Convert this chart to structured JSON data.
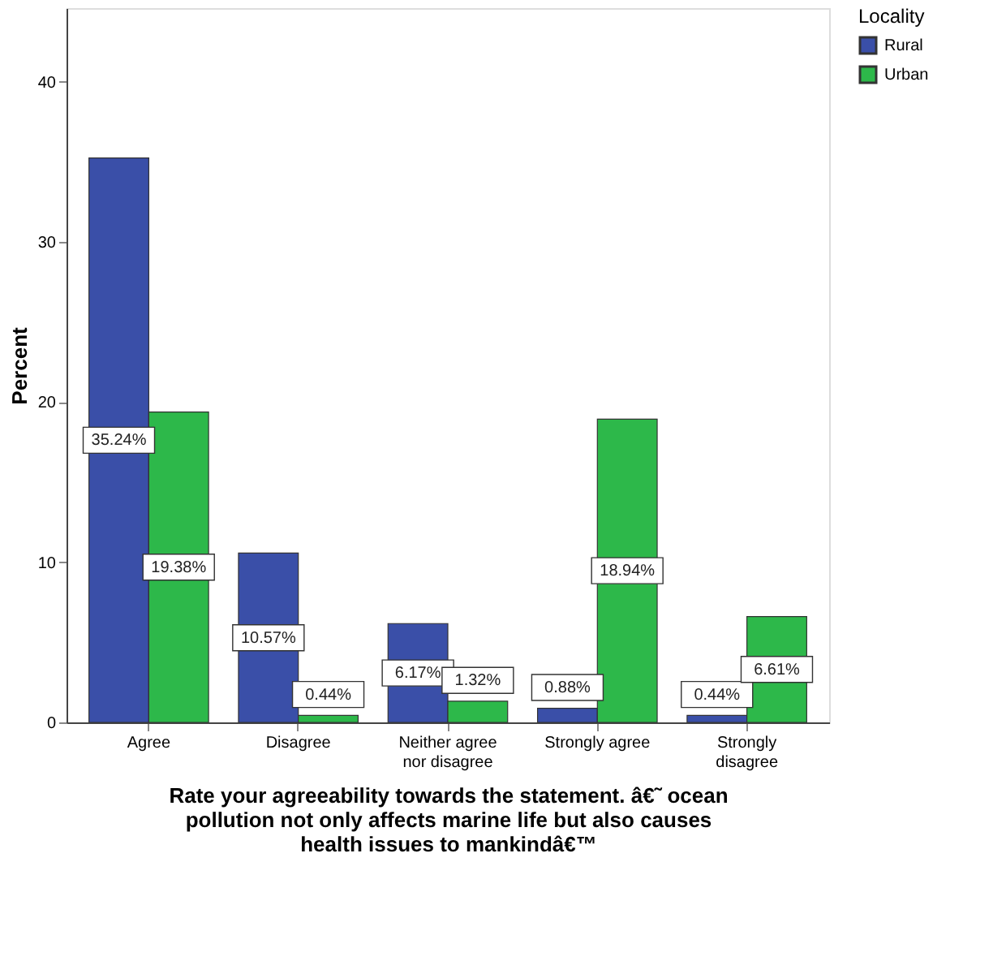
{
  "chart_data": {
    "type": "bar",
    "categories": [
      "Agree",
      "Disagree",
      "Neither agree nor disagree",
      "Strongly agree",
      "Strongly disagree"
    ],
    "series": [
      {
        "name": "Rural",
        "color": "#3a4fa8",
        "values": [
          35.24,
          10.57,
          6.17,
          0.88,
          0.44
        ],
        "value_labels": [
          "35.24%",
          "10.57%",
          "6.17%",
          "0.88%",
          "0.44%"
        ]
      },
      {
        "name": "Urban",
        "color": "#2db84a",
        "values": [
          19.38,
          0.44,
          1.32,
          18.94,
          6.61
        ],
        "value_labels": [
          "19.38%",
          "0.44%",
          "1.32%",
          "18.94%",
          "6.61%"
        ]
      }
    ],
    "xlabel": "Rate your agreeability towards the statement. â€˜ ocean pollution not only affects marine life but also causes health issues to mankindâ€™",
    "ylabel": "Percent",
    "legend_title": "Locality",
    "ylim": [
      0,
      44.6
    ],
    "yticks": [
      0,
      10,
      20,
      30,
      40
    ],
    "grid": false,
    "legend": "right"
  }
}
